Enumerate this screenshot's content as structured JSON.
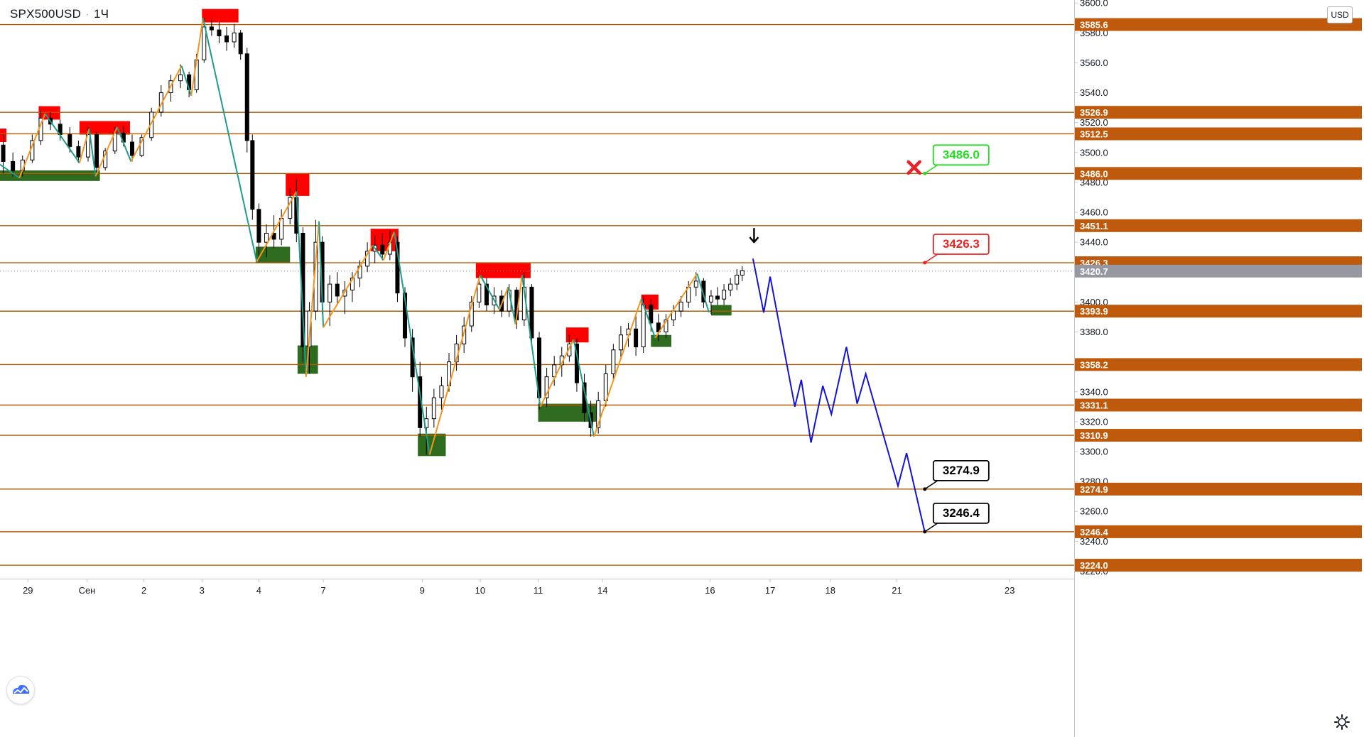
{
  "header": {
    "symbol": "SPX500USD",
    "interval": "1Ч",
    "currency": "USD"
  },
  "icons": {
    "logo": "tradingview-cloud-logo",
    "settings": "gear-icon",
    "cross": "cross-icon",
    "arrow": "arrow-down-icon"
  },
  "colors": {
    "level_line": "#b35a00",
    "level_label": "#bf5a0c",
    "price_label": "#9598a1",
    "zz_up": "#f7941d",
    "zz_down": "#1e9d8b",
    "forecast": "#1414d6",
    "resistance": "#ff0000",
    "support": "#2e6b1f",
    "target_green": "#22dd22",
    "target_red": "#ee2222",
    "target_black": "#000000",
    "candle": "#000000"
  },
  "chart_data": {
    "type": "candlestick",
    "symbol": "SPX500USD",
    "interval": "1Ч",
    "ylim": [
      3215,
      3602
    ],
    "xlim": [
      0,
      100
    ],
    "y_ticks": [
      3220.0,
      3240.0,
      3260.0,
      3280.0,
      3300.0,
      3320.0,
      3340.0,
      3380.0,
      3400.0,
      3440.0,
      3460.0,
      3480.0,
      3500.0,
      3520.0,
      3540.0,
      3560.0,
      3580.0,
      3600.0
    ],
    "x_ticks": [
      {
        "label": "29",
        "x": 2.6
      },
      {
        "label": "Сен",
        "x": 8.1
      },
      {
        "label": "2",
        "x": 13.4
      },
      {
        "label": "3",
        "x": 18.8
      },
      {
        "label": "4",
        "x": 24.1
      },
      {
        "label": "7",
        "x": 30.1
      },
      {
        "label": "9",
        "x": 39.3
      },
      {
        "label": "10",
        "x": 44.7
      },
      {
        "label": "11",
        "x": 50.1
      },
      {
        "label": "14",
        "x": 56.1
      },
      {
        "label": "16",
        "x": 66.1
      },
      {
        "label": "17",
        "x": 71.7
      },
      {
        "label": "18",
        "x": 77.3
      },
      {
        "label": "21",
        "x": 83.5
      },
      {
        "label": "23",
        "x": 94.0
      }
    ],
    "levels": [
      3585.6,
      3526.9,
      3512.5,
      3486.0,
      3451.1,
      3426.3,
      3393.9,
      3358.2,
      3331.1,
      3310.9,
      3274.9,
      3246.4,
      3224.0
    ],
    "current_price": 3420.7,
    "zigzag": [
      {
        "x": 0.0,
        "y": 3492
      },
      {
        "x": 1.8,
        "y": 3483
      },
      {
        "x": 4.2,
        "y": 3526
      },
      {
        "x": 7.4,
        "y": 3493
      },
      {
        "x": 8.3,
        "y": 3516
      },
      {
        "x": 8.9,
        "y": 3484
      },
      {
        "x": 10.9,
        "y": 3517
      },
      {
        "x": 12.2,
        "y": 3494
      },
      {
        "x": 16.9,
        "y": 3558
      },
      {
        "x": 17.8,
        "y": 3538
      },
      {
        "x": 18.9,
        "y": 3590
      },
      {
        "x": 23.9,
        "y": 3427
      },
      {
        "x": 27.6,
        "y": 3474
      },
      {
        "x": 28.5,
        "y": 3350
      },
      {
        "x": 29.7,
        "y": 3454
      },
      {
        "x": 30.1,
        "y": 3383
      },
      {
        "x": 34.7,
        "y": 3438
      },
      {
        "x": 35.7,
        "y": 3428
      },
      {
        "x": 36.7,
        "y": 3447
      },
      {
        "x": 40.0,
        "y": 3298
      },
      {
        "x": 44.7,
        "y": 3418
      },
      {
        "x": 46.5,
        "y": 3395
      },
      {
        "x": 47.3,
        "y": 3410
      },
      {
        "x": 48.0,
        "y": 3385
      },
      {
        "x": 48.6,
        "y": 3418
      },
      {
        "x": 50.3,
        "y": 3330
      },
      {
        "x": 53.4,
        "y": 3375
      },
      {
        "x": 55.3,
        "y": 3310
      },
      {
        "x": 59.7,
        "y": 3402
      },
      {
        "x": 61.0,
        "y": 3376
      },
      {
        "x": 64.9,
        "y": 3419
      },
      {
        "x": 66.0,
        "y": 3393
      }
    ],
    "forecast": [
      {
        "x": 70.1,
        "y": 3429
      },
      {
        "x": 71.1,
        "y": 3393
      },
      {
        "x": 71.7,
        "y": 3417
      },
      {
        "x": 74.0,
        "y": 3330
      },
      {
        "x": 74.6,
        "y": 3348
      },
      {
        "x": 75.5,
        "y": 3306
      },
      {
        "x": 76.6,
        "y": 3344
      },
      {
        "x": 77.4,
        "y": 3325
      },
      {
        "x": 78.8,
        "y": 3370
      },
      {
        "x": 79.8,
        "y": 3332
      },
      {
        "x": 80.6,
        "y": 3352
      },
      {
        "x": 83.6,
        "y": 3277
      },
      {
        "x": 84.4,
        "y": 3299
      },
      {
        "x": 86.1,
        "y": 3246
      }
    ],
    "resistance_zones": [
      {
        "x0": 0.0,
        "x1": 0.6,
        "y0": 3507,
        "y1": 3516
      },
      {
        "x0": 3.6,
        "x1": 5.6,
        "y0": 3522,
        "y1": 3531
      },
      {
        "x0": 7.4,
        "x1": 12.1,
        "y0": 3512,
        "y1": 3521
      },
      {
        "x0": 18.8,
        "x1": 22.2,
        "y0": 3587,
        "y1": 3596
      },
      {
        "x0": 26.6,
        "x1": 28.8,
        "y0": 3471,
        "y1": 3486
      },
      {
        "x0": 34.5,
        "x1": 37.1,
        "y0": 3434,
        "y1": 3449
      },
      {
        "x0": 44.3,
        "x1": 49.4,
        "y0": 3416,
        "y1": 3426
      },
      {
        "x0": 52.7,
        "x1": 54.8,
        "y0": 3373,
        "y1": 3383
      },
      {
        "x0": 59.7,
        "x1": 61.3,
        "y0": 3395,
        "y1": 3405
      }
    ],
    "support_zones": [
      {
        "x0": 0.0,
        "x1": 9.3,
        "y0": 3481,
        "y1": 3488
      },
      {
        "x0": 23.8,
        "x1": 27.0,
        "y0": 3426,
        "y1": 3437
      },
      {
        "x0": 27.7,
        "x1": 29.6,
        "y0": 3352,
        "y1": 3371
      },
      {
        "x0": 38.9,
        "x1": 41.5,
        "y0": 3297,
        "y1": 3312
      },
      {
        "x0": 50.1,
        "x1": 55.9,
        "y0": 3320,
        "y1": 3332
      },
      {
        "x0": 60.6,
        "x1": 62.5,
        "y0": 3370,
        "y1": 3378
      },
      {
        "x0": 66.2,
        "x1": 68.1,
        "y0": 3391,
        "y1": 3398
      }
    ],
    "targets": [
      {
        "label": "3486.0",
        "value": 3486.0,
        "anchor_x": 86.1,
        "color": "green"
      },
      {
        "label": "3426.3",
        "value": 3426.3,
        "anchor_x": 86.1,
        "color": "red"
      },
      {
        "label": "3274.9",
        "value": 3274.9,
        "anchor_x": 86.1,
        "color": "black"
      },
      {
        "label": "3246.4",
        "value": 3246.4,
        "anchor_x": 86.1,
        "color": "black"
      }
    ],
    "cross_marker": {
      "x": 85.1,
      "y": 3490
    },
    "arrow_marker": {
      "x": 70.2,
      "y": 3440
    },
    "candles": [
      {
        "x": 0.3,
        "o": 3505,
        "h": 3512,
        "l": 3486,
        "c": 3494
      },
      {
        "x": 1.2,
        "o": 3494,
        "h": 3500,
        "l": 3484,
        "c": 3488
      },
      {
        "x": 2.1,
        "o": 3488,
        "h": 3498,
        "l": 3484,
        "c": 3495
      },
      {
        "x": 3.0,
        "o": 3495,
        "h": 3512,
        "l": 3493,
        "c": 3508
      },
      {
        "x": 3.8,
        "o": 3508,
        "h": 3528,
        "l": 3505,
        "c": 3523
      },
      {
        "x": 4.7,
        "o": 3523,
        "h": 3527,
        "l": 3515,
        "c": 3519
      },
      {
        "x": 5.6,
        "o": 3519,
        "h": 3522,
        "l": 3508,
        "c": 3512
      },
      {
        "x": 6.5,
        "o": 3512,
        "h": 3517,
        "l": 3500,
        "c": 3504
      },
      {
        "x": 7.3,
        "o": 3504,
        "h": 3508,
        "l": 3493,
        "c": 3497
      },
      {
        "x": 8.2,
        "o": 3497,
        "h": 3517,
        "l": 3494,
        "c": 3512
      },
      {
        "x": 9.0,
        "o": 3512,
        "h": 3514,
        "l": 3484,
        "c": 3490
      },
      {
        "x": 9.8,
        "o": 3490,
        "h": 3503,
        "l": 3488,
        "c": 3501
      },
      {
        "x": 10.7,
        "o": 3501,
        "h": 3517,
        "l": 3499,
        "c": 3513
      },
      {
        "x": 11.5,
        "o": 3513,
        "h": 3518,
        "l": 3504,
        "c": 3507
      },
      {
        "x": 12.3,
        "o": 3507,
        "h": 3512,
        "l": 3494,
        "c": 3498
      },
      {
        "x": 13.2,
        "o": 3498,
        "h": 3512,
        "l": 3497,
        "c": 3510
      },
      {
        "x": 14.1,
        "o": 3510,
        "h": 3530,
        "l": 3508,
        "c": 3527
      },
      {
        "x": 15.0,
        "o": 3527,
        "h": 3545,
        "l": 3524,
        "c": 3540
      },
      {
        "x": 15.9,
        "o": 3540,
        "h": 3552,
        "l": 3534,
        "c": 3548
      },
      {
        "x": 16.8,
        "o": 3548,
        "h": 3559,
        "l": 3543,
        "c": 3552
      },
      {
        "x": 17.6,
        "o": 3552,
        "h": 3554,
        "l": 3537,
        "c": 3542
      },
      {
        "x": 18.3,
        "o": 3542,
        "h": 3566,
        "l": 3540,
        "c": 3562
      },
      {
        "x": 19.0,
        "o": 3562,
        "h": 3590,
        "l": 3560,
        "c": 3584
      },
      {
        "x": 19.7,
        "o": 3584,
        "h": 3589,
        "l": 3578,
        "c": 3582
      },
      {
        "x": 20.4,
        "o": 3582,
        "h": 3587,
        "l": 3573,
        "c": 3578
      },
      {
        "x": 21.1,
        "o": 3578,
        "h": 3584,
        "l": 3568,
        "c": 3574
      },
      {
        "x": 21.8,
        "o": 3574,
        "h": 3586,
        "l": 3570,
        "c": 3580
      },
      {
        "x": 22.4,
        "o": 3580,
        "h": 3582,
        "l": 3562,
        "c": 3566
      },
      {
        "x": 23.0,
        "o": 3566,
        "h": 3570,
        "l": 3500,
        "c": 3508
      },
      {
        "x": 23.5,
        "o": 3508,
        "h": 3512,
        "l": 3455,
        "c": 3462
      },
      {
        "x": 24.1,
        "o": 3462,
        "h": 3466,
        "l": 3428,
        "c": 3440
      },
      {
        "x": 24.8,
        "o": 3440,
        "h": 3452,
        "l": 3430,
        "c": 3446
      },
      {
        "x": 25.5,
        "o": 3446,
        "h": 3458,
        "l": 3436,
        "c": 3442
      },
      {
        "x": 26.2,
        "o": 3442,
        "h": 3462,
        "l": 3438,
        "c": 3456
      },
      {
        "x": 27.0,
        "o": 3456,
        "h": 3476,
        "l": 3452,
        "c": 3470
      },
      {
        "x": 27.6,
        "o": 3470,
        "h": 3482,
        "l": 3440,
        "c": 3446
      },
      {
        "x": 28.2,
        "o": 3446,
        "h": 3450,
        "l": 3360,
        "c": 3370
      },
      {
        "x": 28.8,
        "o": 3370,
        "h": 3400,
        "l": 3352,
        "c": 3394
      },
      {
        "x": 29.4,
        "o": 3394,
        "h": 3455,
        "l": 3388,
        "c": 3440
      },
      {
        "x": 30.0,
        "o": 3440,
        "h": 3444,
        "l": 3392,
        "c": 3400
      },
      {
        "x": 30.7,
        "o": 3400,
        "h": 3418,
        "l": 3384,
        "c": 3412
      },
      {
        "x": 31.4,
        "o": 3412,
        "h": 3420,
        "l": 3398,
        "c": 3404
      },
      {
        "x": 32.1,
        "o": 3404,
        "h": 3414,
        "l": 3392,
        "c": 3408
      },
      {
        "x": 32.8,
        "o": 3408,
        "h": 3420,
        "l": 3400,
        "c": 3416
      },
      {
        "x": 33.5,
        "o": 3416,
        "h": 3428,
        "l": 3410,
        "c": 3424
      },
      {
        "x": 34.2,
        "o": 3424,
        "h": 3440,
        "l": 3420,
        "c": 3434
      },
      {
        "x": 34.9,
        "o": 3434,
        "h": 3444,
        "l": 3426,
        "c": 3438
      },
      {
        "x": 35.6,
        "o": 3438,
        "h": 3446,
        "l": 3428,
        "c": 3432
      },
      {
        "x": 36.3,
        "o": 3432,
        "h": 3448,
        "l": 3428,
        "c": 3440
      },
      {
        "x": 37.0,
        "o": 3440,
        "h": 3444,
        "l": 3400,
        "c": 3406
      },
      {
        "x": 37.7,
        "o": 3406,
        "h": 3410,
        "l": 3370,
        "c": 3376
      },
      {
        "x": 38.4,
        "o": 3376,
        "h": 3382,
        "l": 3340,
        "c": 3350
      },
      {
        "x": 39.1,
        "o": 3350,
        "h": 3360,
        "l": 3310,
        "c": 3316
      },
      {
        "x": 39.7,
        "o": 3316,
        "h": 3330,
        "l": 3298,
        "c": 3322
      },
      {
        "x": 40.4,
        "o": 3322,
        "h": 3342,
        "l": 3316,
        "c": 3336
      },
      {
        "x": 41.1,
        "o": 3336,
        "h": 3350,
        "l": 3328,
        "c": 3344
      },
      {
        "x": 41.8,
        "o": 3344,
        "h": 3366,
        "l": 3340,
        "c": 3360
      },
      {
        "x": 42.5,
        "o": 3360,
        "h": 3378,
        "l": 3354,
        "c": 3372
      },
      {
        "x": 43.2,
        "o": 3372,
        "h": 3390,
        "l": 3366,
        "c": 3384
      },
      {
        "x": 43.9,
        "o": 3384,
        "h": 3404,
        "l": 3380,
        "c": 3400
      },
      {
        "x": 44.6,
        "o": 3400,
        "h": 3418,
        "l": 3396,
        "c": 3412
      },
      {
        "x": 45.3,
        "o": 3412,
        "h": 3416,
        "l": 3394,
        "c": 3398
      },
      {
        "x": 46.0,
        "o": 3398,
        "h": 3410,
        "l": 3392,
        "c": 3404
      },
      {
        "x": 46.7,
        "o": 3404,
        "h": 3408,
        "l": 3390,
        "c": 3394
      },
      {
        "x": 47.4,
        "o": 3394,
        "h": 3412,
        "l": 3390,
        "c": 3408
      },
      {
        "x": 48.1,
        "o": 3408,
        "h": 3410,
        "l": 3382,
        "c": 3388
      },
      {
        "x": 48.8,
        "o": 3388,
        "h": 3420,
        "l": 3384,
        "c": 3410
      },
      {
        "x": 49.5,
        "o": 3410,
        "h": 3412,
        "l": 3370,
        "c": 3376
      },
      {
        "x": 50.2,
        "o": 3376,
        "h": 3380,
        "l": 3328,
        "c": 3336
      },
      {
        "x": 50.9,
        "o": 3336,
        "h": 3356,
        "l": 3330,
        "c": 3350
      },
      {
        "x": 51.6,
        "o": 3350,
        "h": 3364,
        "l": 3344,
        "c": 3358
      },
      {
        "x": 52.3,
        "o": 3358,
        "h": 3370,
        "l": 3350,
        "c": 3364
      },
      {
        "x": 53.0,
        "o": 3364,
        "h": 3378,
        "l": 3360,
        "c": 3372
      },
      {
        "x": 53.7,
        "o": 3372,
        "h": 3376,
        "l": 3340,
        "c": 3346
      },
      {
        "x": 54.4,
        "o": 3346,
        "h": 3352,
        "l": 3320,
        "c": 3326
      },
      {
        "x": 55.0,
        "o": 3326,
        "h": 3334,
        "l": 3310,
        "c": 3316
      },
      {
        "x": 55.7,
        "o": 3316,
        "h": 3340,
        "l": 3312,
        "c": 3334
      },
      {
        "x": 56.4,
        "o": 3334,
        "h": 3358,
        "l": 3330,
        "c": 3352
      },
      {
        "x": 57.1,
        "o": 3352,
        "h": 3372,
        "l": 3348,
        "c": 3368
      },
      {
        "x": 57.8,
        "o": 3368,
        "h": 3384,
        "l": 3362,
        "c": 3378
      },
      {
        "x": 58.5,
        "o": 3378,
        "h": 3386,
        "l": 3370,
        "c": 3382
      },
      {
        "x": 59.2,
        "o": 3382,
        "h": 3392,
        "l": 3364,
        "c": 3370
      },
      {
        "x": 59.9,
        "o": 3370,
        "h": 3404,
        "l": 3366,
        "c": 3398
      },
      {
        "x": 60.6,
        "o": 3398,
        "h": 3402,
        "l": 3380,
        "c": 3386
      },
      {
        "x": 61.3,
        "o": 3386,
        "h": 3392,
        "l": 3374,
        "c": 3380
      },
      {
        "x": 62.0,
        "o": 3380,
        "h": 3392,
        "l": 3376,
        "c": 3388
      },
      {
        "x": 62.7,
        "o": 3388,
        "h": 3398,
        "l": 3384,
        "c": 3394
      },
      {
        "x": 63.4,
        "o": 3394,
        "h": 3404,
        "l": 3390,
        "c": 3400
      },
      {
        "x": 64.1,
        "o": 3400,
        "h": 3414,
        "l": 3396,
        "c": 3410
      },
      {
        "x": 64.8,
        "o": 3410,
        "h": 3420,
        "l": 3404,
        "c": 3414
      },
      {
        "x": 65.5,
        "o": 3414,
        "h": 3416,
        "l": 3396,
        "c": 3400
      },
      {
        "x": 66.2,
        "o": 3400,
        "h": 3408,
        "l": 3392,
        "c": 3404
      },
      {
        "x": 66.8,
        "o": 3404,
        "h": 3410,
        "l": 3398,
        "c": 3402
      },
      {
        "x": 67.4,
        "o": 3402,
        "h": 3412,
        "l": 3398,
        "c": 3408
      },
      {
        "x": 68.0,
        "o": 3408,
        "h": 3416,
        "l": 3404,
        "c": 3412
      },
      {
        "x": 68.6,
        "o": 3412,
        "h": 3422,
        "l": 3408,
        "c": 3418
      },
      {
        "x": 69.1,
        "o": 3418,
        "h": 3424,
        "l": 3414,
        "c": 3421
      }
    ]
  }
}
